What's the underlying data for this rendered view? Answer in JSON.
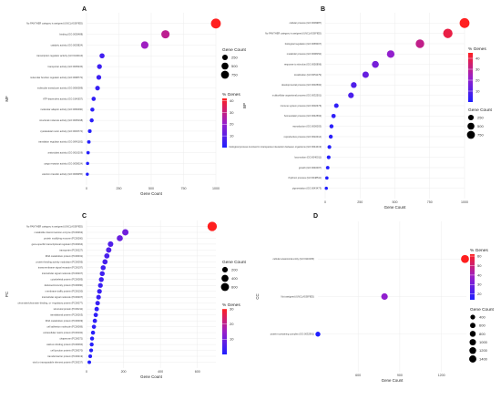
{
  "colors": {
    "low": "#1f1fff",
    "high": "#ff1f1f",
    "grid": "#ececec"
  },
  "chart_data": [
    {
      "type": "scatter",
      "panel": "A",
      "ylabel": "MF",
      "xlabel": "Gene Count",
      "xticks": [
        0,
        250,
        500,
        750,
        1000
      ],
      "categories": [
        "No PANTHER category is assigned (UNCLASSIFIED)",
        "binding (GO:0005488)",
        "catalytic activity (GO:0003824)",
        "transcription regulator activity (GO:0140110)",
        "transporter activity (GO:0005215)",
        "molecular function regulator activity (GO:0098772)",
        "molecular transducer activity (GO:0060089)",
        "ATP-dependent activity (GO:0140657)",
        "molecular adaptor activity (GO:0060090)",
        "structural molecule activity (GO:0005198)",
        "cytoskeletal motor activity (GO:0003774)",
        "translation regulator activity (GO:0045182)",
        "antioxidant activity (GO:0016209)",
        "cargo receptor activity (GO:0038024)",
        "electron transfer activity (GO:0009055)"
      ],
      "gene_count": [
        1000,
        610,
        450,
        120,
        100,
        95,
        85,
        55,
        45,
        40,
        25,
        18,
        12,
        8,
        6
      ],
      "percent_genes": [
        42,
        28,
        22,
        6,
        5,
        5,
        4,
        3,
        2,
        2,
        1,
        1,
        1,
        0.5,
        0.3
      ],
      "size_legend": {
        "title": "Gene Count",
        "values": [
          250,
          500,
          750
        ]
      },
      "color_legend": {
        "title": "% Genes",
        "ticks": [
          10,
          20,
          30,
          40
        ],
        "range": [
          0,
          42
        ]
      }
    },
    {
      "type": "scatter",
      "panel": "B",
      "ylabel": "BP",
      "xlabel": "Gene Count",
      "xticks": [
        0,
        250,
        500,
        750,
        1000
      ],
      "categories": [
        "cellular process (GO:0009987)",
        "No PANTHER category is assigned (UNCLASSIFIED)",
        "biological regulation (GO:0065007)",
        "metabolic process (GO:0008152)",
        "response to stimulus (GO:0050896)",
        "localization (GO:0051179)",
        "developmental process (GO:0032502)",
        "multicellular organismal process (GO:0032501)",
        "immune system process (GO:0002376)",
        "homeostatic process (GO:0042592)",
        "reproduction (GO:0000003)",
        "reproductive process (GO:0022414)",
        "biological process involved in interspecies interaction between organisms (GO:0044419)",
        "locomotion (GO:0040011)",
        "growth (GO:0040007)",
        "rhythmic process (GO:0048511)",
        "pigmentation (GO:0043473)"
      ],
      "gene_count": [
        1000,
        880,
        680,
        470,
        360,
        290,
        205,
        185,
        80,
        60,
        45,
        40,
        30,
        25,
        18,
        12,
        8
      ],
      "percent_genes": [
        45,
        40,
        31,
        21,
        16,
        13,
        9,
        8,
        3,
        3,
        2,
        2,
        1,
        1,
        1,
        0.5,
        0.3
      ],
      "size_legend": {
        "title": "Gene Count",
        "values": [
          250,
          500,
          750
        ]
      },
      "color_legend": {
        "title": "% Genes",
        "ticks": [
          10,
          20,
          30,
          40
        ],
        "range": [
          0,
          45
        ]
      }
    },
    {
      "type": "scatter",
      "panel": "C",
      "ylabel": "PC",
      "xlabel": "Gene Count",
      "xticks": [
        0,
        200,
        400,
        600
      ],
      "categories": [
        "No PANTHER category is assigned (UNCLASSIFIED)",
        "metabolite interconversion enzyme (PC00262)",
        "protein modifying enzyme (PC00260)",
        "gene-specific transcriptional regulator (PC00264)",
        "transporter (PC00227)",
        "RNA metabolism protein (PC00031)",
        "protein-binding activity modulator (PC00095)",
        "transmembrane signal receptor (PC00197)",
        "intercellular signal molecule (PC00207)",
        "cytoskeletal protein (PC00085)",
        "defense/immunity protein (PC00090)",
        "membrane traffic protein (PC00150)",
        "intercellular signal molecule (PC00207)",
        "chromatin/chromatin-binding, or -regulatory protein (PC00077)",
        "structural protein (PC00211)",
        "translational protein (PC00263)",
        "DNA metabolism protein (PC00009)",
        "cell adhesion molecule (PC00069)",
        "extracellular matrix protein (PC00102)",
        "chaperone (PC00072)",
        "calcium-binding protein (PC00060)",
        "cell junction protein (PC00070)",
        "transfer/carrier protein (PC00219)",
        "viral or transposable element protein (PC00237)"
      ],
      "gene_count": [
        680,
        210,
        180,
        130,
        120,
        110,
        100,
        90,
        85,
        80,
        75,
        70,
        65,
        60,
        55,
        50,
        45,
        40,
        35,
        30,
        28,
        25,
        20,
        15
      ],
      "percent_genes": [
        30,
        10,
        9,
        6,
        6,
        5,
        5,
        4,
        4,
        4,
        3,
        3,
        3,
        3,
        2,
        2,
        2,
        2,
        1,
        1,
        1,
        1,
        1,
        0.5
      ],
      "size_legend": {
        "title": "Gene Count",
        "values": [
          200,
          400,
          600
        ]
      },
      "color_legend": {
        "title": "% Genes",
        "ticks": [
          10,
          20,
          30
        ],
        "range": [
          0,
          30
        ]
      }
    },
    {
      "type": "scatter",
      "panel": "D",
      "ylabel": "CC",
      "xlabel": "Gene Count",
      "xticks": [
        600,
        900,
        1200
      ],
      "categories": [
        "cellular anatomical entity (GO:0110165)",
        "Not assigned (UNCLASSIFIED)",
        "protein-containing complex (GO:0032991)"
      ],
      "gene_count": [
        1370,
        790,
        310
      ],
      "percent_genes": [
        62,
        36,
        14
      ],
      "size_legend": {
        "title": "Gene Count",
        "values": [
          400,
          600,
          800,
          1000,
          1200,
          1400
        ]
      },
      "color_legend": {
        "title": "% Genes",
        "ticks": [
          20,
          30,
          40,
          50,
          60
        ],
        "range": [
          14,
          62
        ]
      }
    }
  ]
}
